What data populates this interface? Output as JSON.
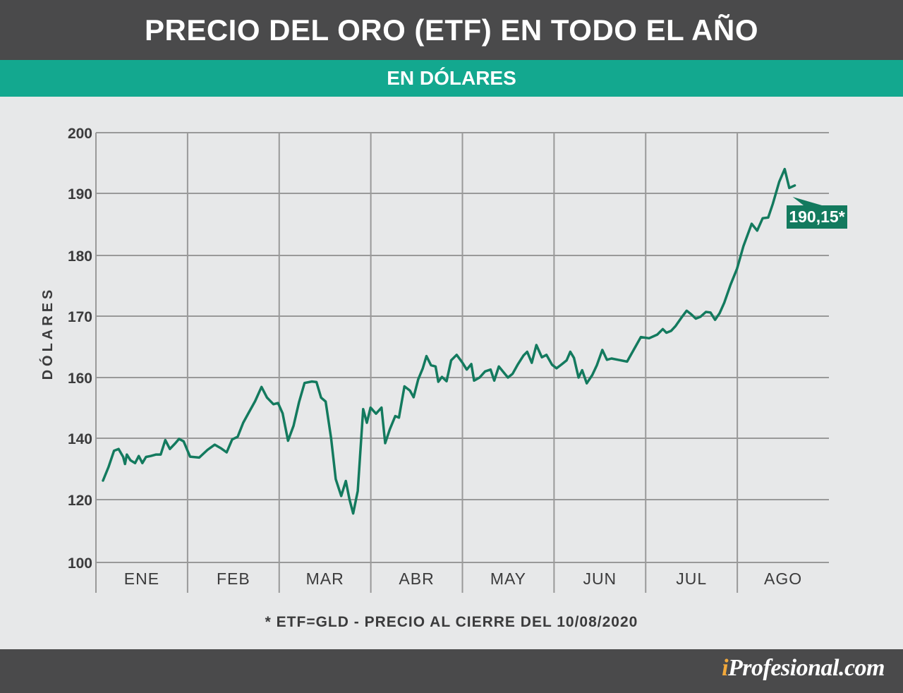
{
  "title": "PRECIO DEL ORO (ETF) EN TODO EL AÑO",
  "subtitle": "EN DÓLARES",
  "footnote": "* ETF=GLD  -  PRECIO AL CIERRE DEL 10/08/2020",
  "brand": {
    "prefix": "i",
    "rest": "Profesional.com"
  },
  "colors": {
    "header": "#4a4a4b",
    "band": "#13a88f",
    "line": "#137a5e",
    "background": "#e7e8e9",
    "grid": "#999999"
  },
  "chart_data": {
    "type": "line",
    "ylabel": "DÓLARES",
    "yticks": [
      "200",
      "190",
      "180",
      "170",
      "160",
      "140",
      "120",
      "100"
    ],
    "categories": [
      "ENE",
      "FEB",
      "MAR",
      "ABR",
      "MAY",
      "JUN",
      "JUL",
      "AGO"
    ],
    "annotation": "190,15*",
    "series": [
      {
        "values": [
          [
            0.0,
            126.2
          ],
          [
            0.06,
            130.6
          ],
          [
            0.12,
            135.9
          ],
          [
            0.17,
            136.5
          ],
          [
            0.22,
            133.9
          ],
          [
            0.24,
            131.6
          ],
          [
            0.26,
            134.7
          ],
          [
            0.3,
            132.8
          ],
          [
            0.35,
            131.9
          ],
          [
            0.39,
            134.2
          ],
          [
            0.43,
            131.9
          ],
          [
            0.47,
            133.9
          ],
          [
            0.52,
            134.2
          ],
          [
            0.58,
            134.7
          ],
          [
            0.63,
            134.7
          ],
          [
            0.68,
            139.4
          ],
          [
            0.73,
            136.5
          ],
          [
            0.79,
            138.4
          ],
          [
            0.83,
            139.8
          ],
          [
            0.88,
            139.0
          ],
          [
            0.95,
            134.0
          ],
          [
            1.05,
            133.7
          ],
          [
            1.14,
            136.2
          ],
          [
            1.22,
            137.9
          ],
          [
            1.29,
            136.7
          ],
          [
            1.35,
            135.4
          ],
          [
            1.41,
            139.6
          ],
          [
            1.47,
            140.5
          ],
          [
            1.53,
            145.1
          ],
          [
            1.59,
            148.4
          ],
          [
            1.66,
            152.2
          ],
          [
            1.73,
            156.9
          ],
          [
            1.79,
            153.4
          ],
          [
            1.86,
            151.2
          ],
          [
            1.91,
            151.6
          ],
          [
            1.96,
            148.2
          ],
          [
            2.02,
            139.2
          ],
          [
            2.08,
            144.1
          ],
          [
            2.14,
            151.9
          ],
          [
            2.2,
            158.2
          ],
          [
            2.28,
            158.7
          ],
          [
            2.33,
            158.5
          ],
          [
            2.38,
            153.4
          ],
          [
            2.43,
            152.1
          ],
          [
            2.49,
            139.9
          ],
          [
            2.54,
            126.7
          ],
          [
            2.6,
            121.2
          ],
          [
            2.65,
            126.1
          ],
          [
            2.69,
            120.1
          ],
          [
            2.73,
            115.6
          ],
          [
            2.78,
            122.8
          ],
          [
            2.84,
            149.6
          ],
          [
            2.88,
            145.1
          ],
          [
            2.92,
            150.1
          ],
          [
            2.98,
            148.1
          ],
          [
            3.04,
            150.1
          ],
          [
            3.08,
            138.4
          ],
          [
            3.13,
            142.9
          ],
          [
            3.19,
            147.3
          ],
          [
            3.23,
            146.8
          ],
          [
            3.29,
            157.1
          ],
          [
            3.35,
            155.7
          ],
          [
            3.39,
            153.5
          ],
          [
            3.44,
            159.4
          ],
          [
            3.49,
            161.5
          ],
          [
            3.53,
            163.5
          ],
          [
            3.58,
            162.0
          ],
          [
            3.63,
            161.8
          ],
          [
            3.66,
            158.6
          ],
          [
            3.7,
            160.1
          ],
          [
            3.75,
            158.8
          ],
          [
            3.8,
            162.8
          ],
          [
            3.86,
            163.7
          ],
          [
            3.92,
            162.5
          ],
          [
            3.97,
            161.3
          ],
          [
            4.02,
            162.2
          ],
          [
            4.05,
            159.0
          ],
          [
            4.11,
            160.0
          ],
          [
            4.17,
            161.0
          ],
          [
            4.23,
            161.3
          ],
          [
            4.27,
            159.0
          ],
          [
            4.32,
            161.8
          ],
          [
            4.38,
            160.7
          ],
          [
            4.42,
            160.0
          ],
          [
            4.47,
            160.6
          ],
          [
            4.53,
            162.2
          ],
          [
            4.59,
            163.6
          ],
          [
            4.63,
            164.2
          ],
          [
            4.68,
            162.4
          ],
          [
            4.73,
            165.3
          ],
          [
            4.79,
            163.3
          ],
          [
            4.84,
            163.7
          ],
          [
            4.9,
            162.1
          ],
          [
            4.95,
            161.5
          ],
          [
            5.01,
            162.2
          ],
          [
            5.06,
            162.8
          ],
          [
            5.1,
            164.2
          ],
          [
            5.14,
            163.2
          ],
          [
            5.19,
            160.0
          ],
          [
            5.23,
            161.2
          ],
          [
            5.28,
            158.1
          ],
          [
            5.34,
            160.4
          ],
          [
            5.39,
            162.0
          ],
          [
            5.45,
            164.5
          ],
          [
            5.5,
            162.9
          ],
          [
            5.55,
            163.1
          ],
          [
            5.62,
            162.9
          ],
          [
            5.72,
            162.6
          ],
          [
            5.87,
            166.6
          ],
          [
            5.96,
            166.4
          ],
          [
            6.05,
            167.0
          ],
          [
            6.11,
            167.9
          ],
          [
            6.15,
            167.3
          ],
          [
            6.2,
            167.6
          ],
          [
            6.25,
            168.4
          ],
          [
            6.32,
            169.9
          ],
          [
            6.37,
            170.9
          ],
          [
            6.42,
            170.3
          ],
          [
            6.47,
            169.6
          ],
          [
            6.52,
            169.9
          ],
          [
            6.58,
            170.7
          ],
          [
            6.63,
            170.6
          ],
          [
            6.68,
            169.4
          ],
          [
            6.73,
            170.5
          ],
          [
            6.78,
            172.2
          ],
          [
            6.85,
            175.2
          ],
          [
            6.92,
            177.8
          ],
          [
            6.99,
            181.5
          ],
          [
            7.08,
            185.1
          ],
          [
            7.14,
            184.0
          ],
          [
            7.2,
            186.0
          ],
          [
            7.26,
            186.1
          ],
          [
            7.31,
            188.3
          ],
          [
            7.38,
            191.9
          ],
          [
            7.44,
            194.0
          ],
          [
            7.49,
            190.9
          ],
          [
            7.55,
            191.3
          ]
        ]
      }
    ]
  }
}
